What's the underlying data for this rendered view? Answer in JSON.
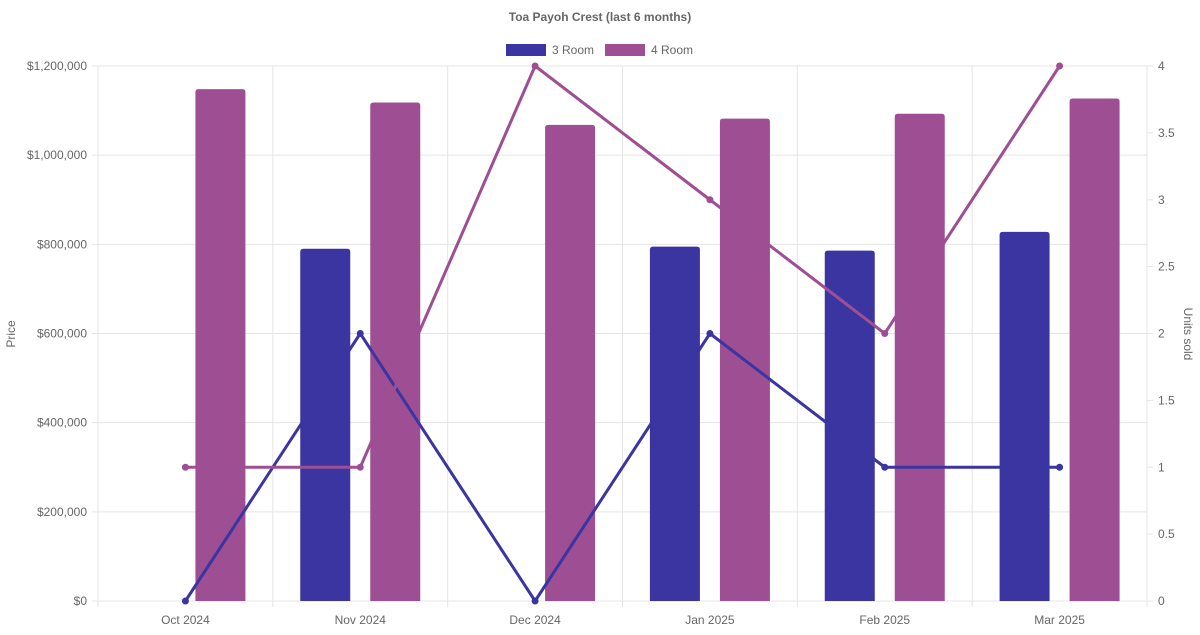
{
  "chart_data": {
    "type": "bar",
    "title": "Toa Payoh Crest (last 6 months)",
    "categories": [
      "Oct 2024",
      "Nov 2024",
      "Dec 2024",
      "Jan 2025",
      "Feb 2025",
      "Mar 2025"
    ],
    "series": [
      {
        "name": "3 Room",
        "kind": "bar",
        "axis": "left",
        "color": "#3a35a0",
        "values": [
          null,
          790000,
          null,
          795000,
          786000,
          828000
        ]
      },
      {
        "name": "4 Room",
        "kind": "bar",
        "axis": "left",
        "color": "#9e4f93",
        "values": [
          1148000,
          1118000,
          1068000,
          1082000,
          1093000,
          1127000
        ]
      },
      {
        "name": "3 Room",
        "kind": "line",
        "axis": "right",
        "color": "#3a35a0",
        "values": [
          0,
          2,
          0,
          2,
          1,
          1
        ]
      },
      {
        "name": "4 Room",
        "kind": "line",
        "axis": "right",
        "color": "#9e4f93",
        "values": [
          1,
          1,
          4,
          3,
          2,
          4
        ]
      }
    ],
    "ylabel": "Price",
    "y2label": "Units sold",
    "ylim": [
      0,
      1200000
    ],
    "y2lim": [
      0,
      4
    ],
    "yticks": [
      "$0",
      "$200,000",
      "$400,000",
      "$600,000",
      "$800,000",
      "$1,000,000",
      "$1,200,000"
    ],
    "y2ticks": [
      "0",
      "0.5",
      "1",
      "1.5",
      "2",
      "2.5",
      "3",
      "3.5",
      "4"
    ],
    "legend": [
      {
        "label": "3 Room",
        "color": "#3a35a0"
      },
      {
        "label": "4 Room",
        "color": "#9e4f93"
      }
    ],
    "legend_position": "top-center",
    "grid": true
  }
}
